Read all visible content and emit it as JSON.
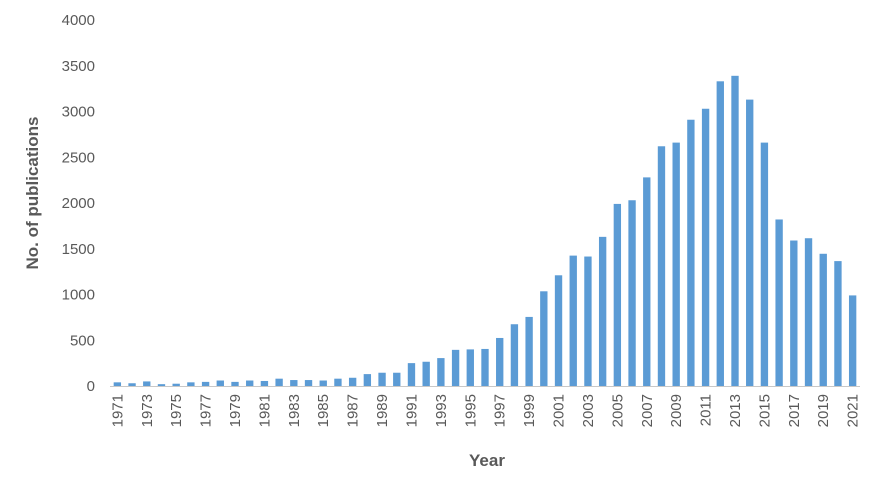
{
  "chart_data": {
    "type": "bar",
    "title": "",
    "xlabel": "Year",
    "ylabel": "No. of publications",
    "ylim": [
      0,
      4000
    ],
    "yticks": [
      0,
      500,
      1000,
      1500,
      2000,
      2500,
      3000,
      3500,
      4000
    ],
    "grid": false,
    "legend": "none",
    "bar_color": "#5B9BD5",
    "categories": [
      "1971",
      "1972",
      "1973",
      "1974",
      "1975",
      "1976",
      "1977",
      "1978",
      "1979",
      "1980",
      "1981",
      "1982",
      "1983",
      "1984",
      "1985",
      "1986",
      "1987",
      "1988",
      "1989",
      "1990",
      "1991",
      "1992",
      "1993",
      "1994",
      "1995",
      "1996",
      "1997",
      "1998",
      "1999",
      "2000",
      "2001",
      "2002",
      "2003",
      "2004",
      "2005",
      "2006",
      "2007",
      "2008",
      "2009",
      "2010",
      "2011",
      "2012",
      "2013",
      "2014",
      "2015",
      "2016",
      "2017",
      "2018",
      "2019",
      "2020",
      "2021"
    ],
    "x_tick_labels": [
      "1971",
      "1973",
      "1975",
      "1977",
      "1979",
      "1981",
      "1983",
      "1985",
      "1987",
      "1989",
      "1991",
      "1993",
      "1995",
      "1997",
      "1999",
      "2001",
      "2003",
      "2005",
      "2007",
      "2009",
      "2011",
      "2013",
      "2015",
      "2017",
      "2019",
      "2021"
    ],
    "values": [
      40,
      30,
      50,
      20,
      25,
      40,
      45,
      60,
      45,
      60,
      55,
      80,
      65,
      65,
      60,
      80,
      90,
      130,
      145,
      145,
      250,
      265,
      305,
      395,
      400,
      405,
      525,
      675,
      755,
      1035,
      1210,
      1425,
      1415,
      1630,
      1990,
      2030,
      2280,
      2620,
      2660,
      2910,
      3030,
      3330,
      3390,
      3130,
      2660,
      1820,
      1590,
      1615,
      1445,
      1365,
      990
    ]
  }
}
